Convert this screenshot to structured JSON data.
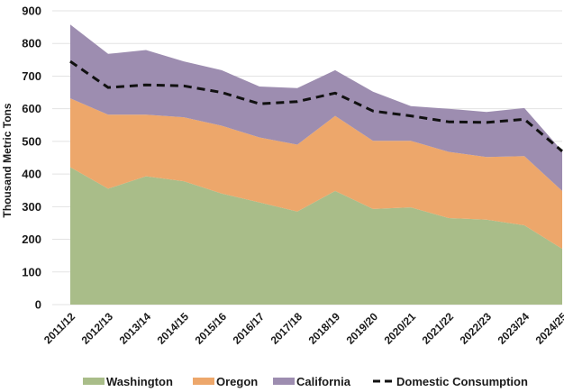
{
  "chart_data": {
    "type": "area",
    "stacked": true,
    "title": "",
    "xlabel": "",
    "ylabel": "Thousand Metric Tons",
    "ylim": [
      0,
      900
    ],
    "yticks": [
      "0",
      "100",
      "200",
      "300",
      "400",
      "500",
      "600",
      "700",
      "800",
      "900"
    ],
    "grid": true,
    "legend_position": "bottom",
    "categories": [
      "2011/12",
      "2012/13",
      "2013/14",
      "2014/15",
      "2015/16",
      "2016/17",
      "2017/18",
      "2018/19",
      "2019/20",
      "2020/21",
      "2021/22",
      "2022/23",
      "2023/24",
      "2024/25"
    ],
    "series": [
      {
        "name": "Washington",
        "kind": "area",
        "color": "#a9bd89",
        "values": [
          421,
          355,
          393,
          378,
          340,
          313,
          285,
          348,
          293,
          298,
          265,
          260,
          243,
          171
        ]
      },
      {
        "name": "Oregon",
        "kind": "area",
        "color": "#eda76b",
        "values": [
          211,
          227,
          189,
          196,
          208,
          199,
          205,
          230,
          209,
          204,
          203,
          192,
          212,
          177
        ]
      },
      {
        "name": "California",
        "kind": "area",
        "color": "#9d8db0",
        "values": [
          226,
          186,
          198,
          171,
          170,
          156,
          173,
          140,
          150,
          106,
          132,
          138,
          147,
          122
        ]
      },
      {
        "name": "Domestic Consumption",
        "kind": "line",
        "style": "dashed",
        "color": "#111111",
        "values": [
          745,
          665,
          673,
          670,
          650,
          615,
          622,
          648,
          593,
          578,
          560,
          558,
          568,
          470
        ]
      }
    ]
  }
}
